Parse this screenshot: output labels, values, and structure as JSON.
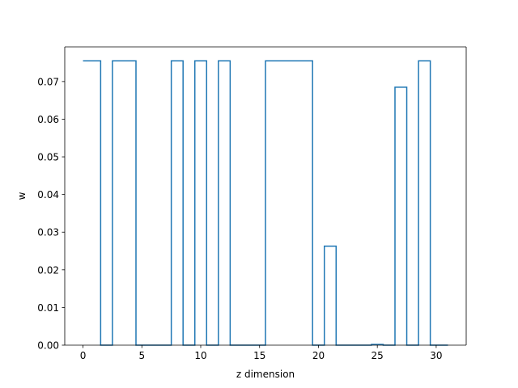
{
  "chart_data": {
    "type": "line",
    "drawstyle": "steps-mid",
    "title": "",
    "xlabel": "z dimension",
    "ylabel": "w",
    "xlim": [
      -1.55,
      32.55
    ],
    "ylim": [
      0.0,
      0.0792
    ],
    "xticks": [
      0,
      5,
      10,
      15,
      20,
      25,
      30
    ],
    "xtick_labels": [
      "0",
      "5",
      "10",
      "15",
      "20",
      "25",
      "30"
    ],
    "yticks": [
      0.0,
      0.01,
      0.02,
      0.03,
      0.04,
      0.05,
      0.06,
      0.07
    ],
    "ytick_labels": [
      "0.00",
      "0.01",
      "0.02",
      "0.03",
      "0.04",
      "0.05",
      "0.06",
      "0.07"
    ],
    "grid": false,
    "legend": "none",
    "series": [
      {
        "color": "#1f77b4",
        "x": [
          0,
          1,
          2,
          3,
          4,
          5,
          6,
          7,
          8,
          9,
          10,
          11,
          12,
          13,
          14,
          15,
          16,
          17,
          18,
          19,
          20,
          21,
          22,
          23,
          24,
          25,
          26,
          27,
          28,
          29,
          30,
          31
        ],
        "y": [
          0.0755,
          0.0755,
          0.0,
          0.0755,
          0.0755,
          0.0,
          0.0,
          0.0,
          0.0755,
          0.0,
          0.0755,
          0.0,
          0.0755,
          0.0,
          0.0,
          0.0,
          0.0755,
          0.0755,
          0.0755,
          0.0755,
          0.0,
          0.0263,
          0.0,
          0.0,
          0.0,
          0.0002,
          0.0,
          0.0685,
          0.0,
          0.0755,
          0.0,
          0.0
        ]
      }
    ]
  }
}
